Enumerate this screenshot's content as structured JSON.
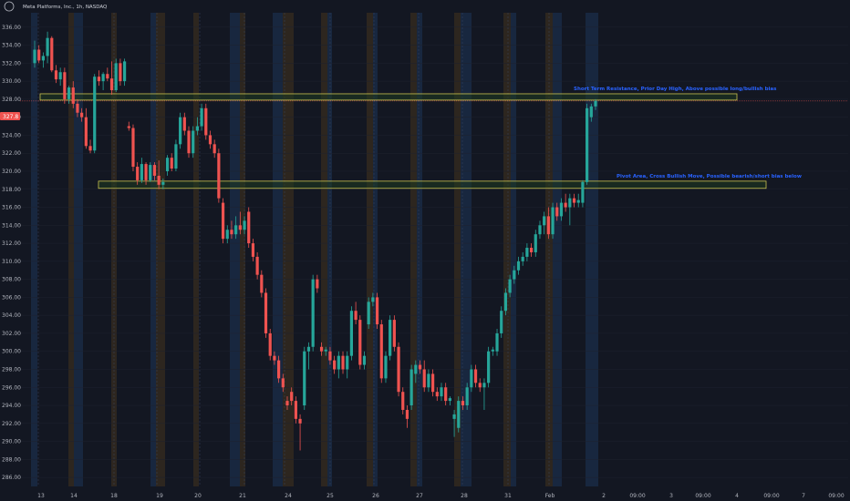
{
  "symbol": {
    "legend": "Meta Platforms, Inc., 1h, NASDAQ"
  },
  "colors": {
    "background": "#131722",
    "bull": "#26a69a",
    "bear": "#ef5350",
    "zone_fill": "#1f3a1f",
    "zone_stroke": "#c9c24f",
    "session_blue": "#1a2a44",
    "session_orange": "#33291e",
    "annotation": "#2962ff",
    "price_line": "#ef5350"
  },
  "chart_data": {
    "type": "candlestick",
    "yaxis": {
      "min": 285,
      "max": 337.6,
      "ticks": [
        "286.00",
        "288.00",
        "290.00",
        "292.00",
        "294.00",
        "296.00",
        "298.00",
        "300.00",
        "302.00",
        "304.00",
        "306.00",
        "308.00",
        "310.00",
        "312.00",
        "314.00",
        "316.00",
        "318.00",
        "320.00",
        "322.00",
        "324.00",
        "326.00",
        "328.00",
        "330.00",
        "332.00",
        "334.00",
        "336.00"
      ]
    },
    "xaxis": {
      "labels": [
        "13",
        "14",
        "18",
        "19",
        "20",
        "21",
        "24",
        "25",
        "26",
        "27",
        "28",
        "31",
        "Feb",
        "2",
        "09:00",
        "3",
        "09:00",
        "4",
        "09:00",
        "7",
        "09:00"
      ]
    },
    "current_price": "327.8",
    "zones": [
      {
        "id": "resistance",
        "top": 328.6,
        "bottom": 327.9,
        "label": "Short Term Resistance, Prior Day High, Above possible long/bullish bias"
      },
      {
        "id": "pivot",
        "top": 318.9,
        "bottom": 318.1,
        "label": "Pivot Area, Cross Bullish Move, Possible bearish/short bias below"
      }
    ],
    "candles": [
      {
        "o": 332.0,
        "h": 334.5,
        "l": 331.5,
        "c": 333.5
      },
      {
        "o": 333.5,
        "h": 334.0,
        "l": 332.0,
        "c": 332.3
      },
      {
        "o": 332.3,
        "h": 333.2,
        "l": 331.5,
        "c": 332.8
      },
      {
        "o": 332.8,
        "h": 335.5,
        "l": 332.0,
        "c": 334.8
      },
      {
        "o": 334.8,
        "h": 335.0,
        "l": 331.0,
        "c": 331.2
      },
      {
        "o": 331.2,
        "h": 331.8,
        "l": 329.8,
        "c": 330.2
      },
      {
        "o": 330.2,
        "h": 331.5,
        "l": 329.5,
        "c": 331.0
      },
      {
        "o": 331.0,
        "h": 331.5,
        "l": 327.5,
        "c": 328.0
      },
      {
        "o": 328.0,
        "h": 329.5,
        "l": 327.5,
        "c": 329.3
      },
      {
        "o": 329.3,
        "h": 330.0,
        "l": 327.0,
        "c": 327.5
      },
      {
        "o": 327.5,
        "h": 328.0,
        "l": 326.0,
        "c": 326.5
      },
      {
        "o": 326.5,
        "h": 327.0,
        "l": 325.5,
        "c": 326.0
      },
      {
        "o": 326.0,
        "h": 327.0,
        "l": 322.5,
        "c": 322.8
      },
      {
        "o": 322.8,
        "h": 323.5,
        "l": 322.0,
        "c": 322.3
      },
      {
        "o": 322.3,
        "h": 330.8,
        "l": 322.0,
        "c": 330.5
      },
      {
        "o": 330.5,
        "h": 331.2,
        "l": 329.5,
        "c": 330.0
      },
      {
        "o": 330.0,
        "h": 331.0,
        "l": 329.0,
        "c": 330.8
      },
      {
        "o": 330.8,
        "h": 331.5,
        "l": 330.0,
        "c": 330.3
      },
      {
        "o": 330.3,
        "h": 332.2,
        "l": 328.5,
        "c": 329.0
      },
      {
        "o": 329.0,
        "h": 332.5,
        "l": 328.8,
        "c": 332.0
      },
      {
        "o": 332.0,
        "h": 332.5,
        "l": 329.5,
        "c": 330.0
      },
      {
        "o": 330.0,
        "h": 332.5,
        "l": 329.5,
        "c": 332.2
      },
      {
        "o": 325.0,
        "h": 325.5,
        "l": 324.5,
        "c": 324.8
      },
      {
        "o": 324.8,
        "h": 325.2,
        "l": 320.0,
        "c": 320.5
      },
      {
        "o": 320.5,
        "h": 321.0,
        "l": 318.5,
        "c": 319.0
      },
      {
        "o": 319.0,
        "h": 321.5,
        "l": 318.7,
        "c": 320.8
      },
      {
        "o": 320.8,
        "h": 321.0,
        "l": 318.5,
        "c": 319.0
      },
      {
        "o": 319.0,
        "h": 321.0,
        "l": 318.8,
        "c": 320.7
      },
      {
        "o": 320.7,
        "h": 321.0,
        "l": 319.0,
        "c": 319.5
      },
      {
        "o": 319.5,
        "h": 321.2,
        "l": 318.0,
        "c": 318.5
      },
      {
        "o": 318.5,
        "h": 319.2,
        "l": 318.0,
        "c": 318.8
      },
      {
        "o": 320.0,
        "h": 321.8,
        "l": 319.5,
        "c": 321.5
      },
      {
        "o": 321.5,
        "h": 322.0,
        "l": 320.0,
        "c": 320.3
      },
      {
        "o": 320.3,
        "h": 323.5,
        "l": 320.0,
        "c": 323.0
      },
      {
        "o": 323.0,
        "h": 326.5,
        "l": 322.5,
        "c": 326.0
      },
      {
        "o": 326.0,
        "h": 326.5,
        "l": 324.0,
        "c": 324.5
      },
      {
        "o": 324.5,
        "h": 325.0,
        "l": 321.5,
        "c": 322.0
      },
      {
        "o": 322.0,
        "h": 325.0,
        "l": 321.5,
        "c": 324.5
      },
      {
        "o": 324.5,
        "h": 326.0,
        "l": 324.0,
        "c": 325.0
      },
      {
        "o": 325.0,
        "h": 327.5,
        "l": 324.5,
        "c": 327.0
      },
      {
        "o": 327.0,
        "h": 327.5,
        "l": 323.5,
        "c": 324.0
      },
      {
        "o": 324.0,
        "h": 324.5,
        "l": 322.5,
        "c": 323.0
      },
      {
        "o": 323.0,
        "h": 323.5,
        "l": 321.5,
        "c": 322.0
      },
      {
        "o": 322.0,
        "h": 322.5,
        "l": 316.5,
        "c": 317.0
      },
      {
        "o": 316.5,
        "h": 317.0,
        "l": 312.0,
        "c": 312.5
      },
      {
        "o": 312.5,
        "h": 314.0,
        "l": 312.0,
        "c": 313.5
      },
      {
        "o": 313.5,
        "h": 314.5,
        "l": 312.5,
        "c": 313.0
      },
      {
        "o": 313.0,
        "h": 315.0,
        "l": 312.5,
        "c": 314.0
      },
      {
        "o": 314.0,
        "h": 315.5,
        "l": 313.0,
        "c": 313.5
      },
      {
        "o": 313.5,
        "h": 315.0,
        "l": 313.0,
        "c": 314.5
      },
      {
        "o": 315.5,
        "h": 316.0,
        "l": 311.5,
        "c": 312.0
      },
      {
        "o": 312.0,
        "h": 312.5,
        "l": 310.0,
        "c": 310.5
      },
      {
        "o": 310.5,
        "h": 311.0,
        "l": 308.0,
        "c": 308.5
      },
      {
        "o": 308.5,
        "h": 309.0,
        "l": 306.0,
        "c": 306.5
      },
      {
        "o": 306.5,
        "h": 307.0,
        "l": 301.5,
        "c": 302.0
      },
      {
        "o": 302.0,
        "h": 302.5,
        "l": 299.0,
        "c": 299.5
      },
      {
        "o": 299.5,
        "h": 300.0,
        "l": 298.5,
        "c": 299.0
      },
      {
        "o": 299.0,
        "h": 299.5,
        "l": 296.5,
        "c": 297.0
      },
      {
        "o": 297.0,
        "h": 297.5,
        "l": 295.5,
        "c": 296.0
      },
      {
        "o": 294.5,
        "h": 295.0,
        "l": 293.5,
        "c": 294.0
      },
      {
        "o": 295.5,
        "h": 296.0,
        "l": 294.0,
        "c": 294.5
      },
      {
        "o": 294.5,
        "h": 295.0,
        "l": 292.0,
        "c": 292.5
      },
      {
        "o": 292.5,
        "h": 293.0,
        "l": 289.0,
        "c": 292.0
      },
      {
        "o": 294.0,
        "h": 300.5,
        "l": 293.5,
        "c": 300.0
      },
      {
        "o": 300.0,
        "h": 301.0,
        "l": 298.0,
        "c": 300.5
      },
      {
        "o": 300.5,
        "h": 308.5,
        "l": 300.0,
        "c": 308.0
      },
      {
        "o": 308.0,
        "h": 308.5,
        "l": 306.5,
        "c": 307.0
      },
      {
        "o": 300.5,
        "h": 301.0,
        "l": 299.5,
        "c": 300.0
      },
      {
        "o": 300.0,
        "h": 300.5,
        "l": 299.5,
        "c": 300.2
      },
      {
        "o": 300.0,
        "h": 300.5,
        "l": 298.5,
        "c": 299.0
      },
      {
        "o": 299.0,
        "h": 299.5,
        "l": 297.5,
        "c": 298.0
      },
      {
        "o": 298.0,
        "h": 300.0,
        "l": 297.0,
        "c": 299.5
      },
      {
        "o": 299.5,
        "h": 300.0,
        "l": 297.5,
        "c": 298.0
      },
      {
        "o": 298.0,
        "h": 300.0,
        "l": 297.0,
        "c": 299.5
      },
      {
        "o": 299.5,
        "h": 305.0,
        "l": 299.0,
        "c": 304.5
      },
      {
        "o": 304.5,
        "h": 305.5,
        "l": 303.0,
        "c": 303.5
      },
      {
        "o": 303.5,
        "h": 304.0,
        "l": 298.0,
        "c": 298.5
      },
      {
        "o": 298.5,
        "h": 300.0,
        "l": 298.0,
        "c": 299.5
      },
      {
        "o": 303.0,
        "h": 306.0,
        "l": 302.5,
        "c": 305.5
      },
      {
        "o": 305.5,
        "h": 306.5,
        "l": 305.0,
        "c": 306.0
      },
      {
        "o": 306.0,
        "h": 306.5,
        "l": 302.5,
        "c": 303.0
      },
      {
        "o": 303.0,
        "h": 303.5,
        "l": 296.5,
        "c": 297.0
      },
      {
        "o": 297.0,
        "h": 300.0,
        "l": 296.5,
        "c": 299.5
      },
      {
        "o": 299.5,
        "h": 304.0,
        "l": 299.0,
        "c": 303.5
      },
      {
        "o": 303.5,
        "h": 304.0,
        "l": 300.0,
        "c": 300.5
      },
      {
        "o": 300.5,
        "h": 301.0,
        "l": 295.0,
        "c": 295.5
      },
      {
        "o": 295.5,
        "h": 296.0,
        "l": 293.0,
        "c": 293.5
      },
      {
        "o": 293.5,
        "h": 294.0,
        "l": 291.5,
        "c": 292.5
      },
      {
        "o": 294.0,
        "h": 298.5,
        "l": 293.5,
        "c": 298.0
      },
      {
        "o": 297.5,
        "h": 299.0,
        "l": 296.5,
        "c": 298.5
      },
      {
        "o": 298.5,
        "h": 299.0,
        "l": 297.5,
        "c": 298.0
      },
      {
        "o": 298.0,
        "h": 299.0,
        "l": 295.5,
        "c": 296.0
      },
      {
        "o": 296.0,
        "h": 298.0,
        "l": 295.5,
        "c": 297.5
      },
      {
        "o": 297.5,
        "h": 298.0,
        "l": 295.0,
        "c": 295.5
      },
      {
        "o": 295.5,
        "h": 296.0,
        "l": 294.5,
        "c": 295.0
      },
      {
        "o": 295.0,
        "h": 296.5,
        "l": 294.5,
        "c": 296.0
      },
      {
        "o": 296.0,
        "h": 296.5,
        "l": 294.0,
        "c": 294.5
      },
      {
        "o": 294.5,
        "h": 295.0,
        "l": 294.0,
        "c": 294.8
      },
      {
        "o": 292.5,
        "h": 293.5,
        "l": 290.5,
        "c": 293.0
      },
      {
        "o": 291.5,
        "h": 295.0,
        "l": 291.0,
        "c": 294.5
      },
      {
        "o": 294.5,
        "h": 295.0,
        "l": 293.5,
        "c": 294.0
      },
      {
        "o": 294.0,
        "h": 296.5,
        "l": 293.5,
        "c": 296.0
      },
      {
        "o": 296.0,
        "h": 298.5,
        "l": 295.5,
        "c": 298.0
      },
      {
        "o": 298.0,
        "h": 298.5,
        "l": 296.0,
        "c": 296.5
      },
      {
        "o": 296.5,
        "h": 297.0,
        "l": 295.5,
        "c": 296.0
      },
      {
        "o": 296.0,
        "h": 297.0,
        "l": 293.5,
        "c": 296.5
      },
      {
        "o": 296.5,
        "h": 300.5,
        "l": 296.0,
        "c": 300.0
      },
      {
        "o": 300.0,
        "h": 300.5,
        "l": 299.5,
        "c": 300.2
      },
      {
        "o": 300.0,
        "h": 302.5,
        "l": 299.5,
        "c": 302.0
      },
      {
        "o": 302.0,
        "h": 305.0,
        "l": 301.5,
        "c": 304.5
      },
      {
        "o": 304.5,
        "h": 307.0,
        "l": 304.0,
        "c": 306.5
      },
      {
        "o": 306.5,
        "h": 308.5,
        "l": 306.0,
        "c": 308.0
      },
      {
        "o": 308.0,
        "h": 309.5,
        "l": 307.5,
        "c": 309.0
      },
      {
        "o": 309.0,
        "h": 310.5,
        "l": 308.5,
        "c": 310.0
      },
      {
        "o": 310.0,
        "h": 311.0,
        "l": 309.5,
        "c": 310.5
      },
      {
        "o": 310.5,
        "h": 312.0,
        "l": 310.0,
        "c": 311.5
      },
      {
        "o": 311.5,
        "h": 312.0,
        "l": 310.5,
        "c": 311.0
      },
      {
        "o": 311.0,
        "h": 313.5,
        "l": 310.5,
        "c": 313.0
      },
      {
        "o": 313.0,
        "h": 314.5,
        "l": 312.5,
        "c": 314.0
      },
      {
        "o": 314.0,
        "h": 315.5,
        "l": 313.0,
        "c": 315.0
      },
      {
        "o": 315.0,
        "h": 316.0,
        "l": 312.5,
        "c": 313.0
      },
      {
        "o": 313.0,
        "h": 316.5,
        "l": 312.5,
        "c": 316.0
      },
      {
        "o": 316.0,
        "h": 316.5,
        "l": 314.5,
        "c": 315.0
      },
      {
        "o": 315.0,
        "h": 317.0,
        "l": 314.5,
        "c": 316.5
      },
      {
        "o": 316.5,
        "h": 317.5,
        "l": 315.5,
        "c": 316.0
      },
      {
        "o": 316.0,
        "h": 317.5,
        "l": 314.0,
        "c": 317.0
      },
      {
        "o": 317.0,
        "h": 317.5,
        "l": 316.0,
        "c": 316.5
      },
      {
        "o": 316.5,
        "h": 317.5,
        "l": 316.0,
        "c": 316.8
      },
      {
        "o": 316.5,
        "h": 319.0,
        "l": 316.0,
        "c": 318.8
      },
      {
        "o": 318.8,
        "h": 327.5,
        "l": 318.5,
        "c": 327.0
      },
      {
        "o": 326.0,
        "h": 327.5,
        "l": 325.5,
        "c": 327.2
      },
      {
        "o": 327.2,
        "h": 328.0,
        "l": 326.8,
        "c": 327.8
      }
    ]
  }
}
